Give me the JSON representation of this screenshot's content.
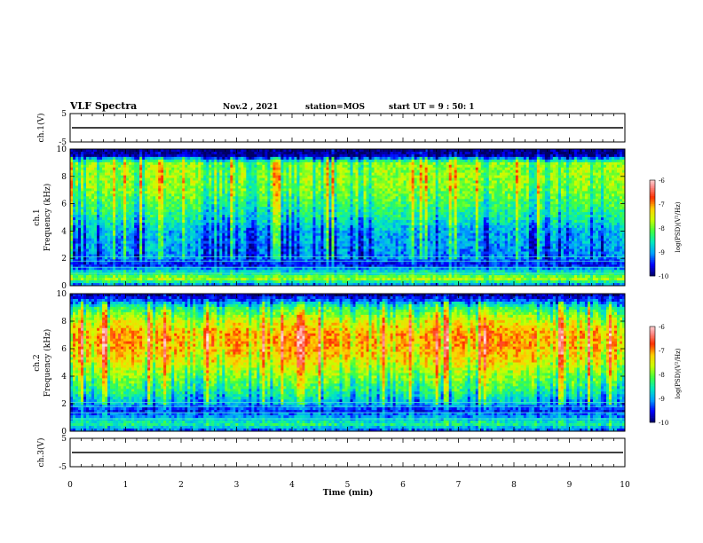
{
  "header": {
    "title": "VLF Spectra",
    "date": "Nov.2 , 2021",
    "station": "station=MOS",
    "start": "start UT = 9 : 50: 1"
  },
  "colors": {
    "spectrogram_scale": [
      "#000066",
      "#0000ff",
      "#00a0ff",
      "#00e8c0",
      "#40ff40",
      "#c8ff00",
      "#ffd000",
      "#ff3000",
      "#ff9090",
      "#ffffff"
    ],
    "frame": "#000000",
    "background": "#ffffff"
  },
  "chart_data": [
    {
      "type": "line",
      "panel": "ch1-waveform",
      "ylabel": "ch.1(V)",
      "ylim": [
        -5,
        5
      ],
      "yticks": [
        "5",
        "-5"
      ],
      "x": [
        0,
        10
      ],
      "values": [
        0,
        0
      ],
      "grid": false
    },
    {
      "type": "heatmap",
      "panel": "ch1-spectrogram",
      "ylabel_top": "ch.1",
      "ylabel": "Frequency (kHz)",
      "ylim": [
        0,
        10
      ],
      "yticks": [
        "0",
        "2",
        "4",
        "6",
        "8",
        "10"
      ],
      "xlim": [
        0,
        10
      ],
      "band_profile": {
        "freq_khz": [
          0,
          0.5,
          1,
          1.5,
          2,
          3,
          4,
          5,
          6,
          7,
          8,
          9,
          9.5,
          10
        ],
        "log_psd": [
          -9.3,
          -7.8,
          -8.6,
          -9.6,
          -9.2,
          -9.1,
          -9.0,
          -8.6,
          -8.3,
          -8.0,
          -7.9,
          -8.0,
          -9.8,
          -10.0
        ]
      },
      "colorbar": {
        "label": "log(PSD)(V²/Hz)",
        "range": [
          -10,
          -6
        ],
        "ticks": [
          "-6",
          "-7",
          "-8",
          "-9",
          "-10"
        ]
      }
    },
    {
      "type": "heatmap",
      "panel": "ch2-spectrogram",
      "ylabel_top": "ch.2",
      "ylabel": "Frequency (kHz)",
      "ylim": [
        0,
        10
      ],
      "yticks": [
        "0",
        "2",
        "4",
        "6",
        "8",
        "10"
      ],
      "xlim": [
        0,
        10
      ],
      "band_profile": {
        "freq_khz": [
          0,
          0.5,
          1,
          1.5,
          2,
          3,
          4,
          5,
          6,
          7,
          8,
          9,
          9.5,
          10
        ],
        "log_psd": [
          -9.4,
          -8.4,
          -9.0,
          -9.5,
          -9.0,
          -8.4,
          -8.0,
          -7.5,
          -7.2,
          -7.1,
          -7.6,
          -8.4,
          -9.3,
          -9.9
        ]
      },
      "colorbar": {
        "label": "log(PSD)(V²/Hz)",
        "range": [
          -10,
          -6
        ],
        "ticks": [
          "-6",
          "-7",
          "-8",
          "-9",
          "-10"
        ]
      }
    },
    {
      "type": "line",
      "panel": "ch3-waveform",
      "ylabel": "ch.3(V)",
      "ylim": [
        -5,
        5
      ],
      "yticks": [
        "5",
        "-5"
      ],
      "x": [
        0,
        10
      ],
      "values": [
        0,
        0
      ],
      "xlabel": "Time (min)",
      "xticks": [
        "0",
        "1",
        "2",
        "3",
        "4",
        "5",
        "6",
        "7",
        "8",
        "9",
        "10"
      ],
      "grid": false
    }
  ]
}
